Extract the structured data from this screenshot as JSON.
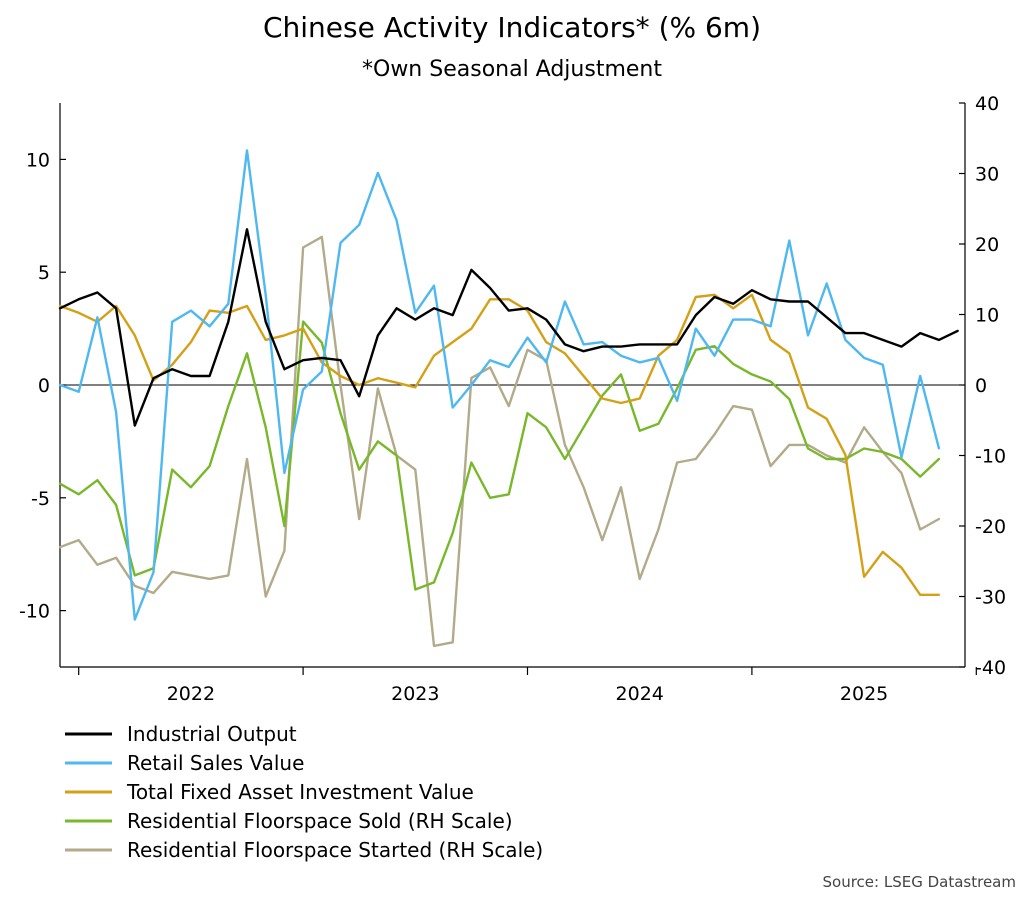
{
  "chart_data": {
    "type": "line",
    "title": "Chinese Activity Indicators* (% 6m)",
    "subtitle": "*Own Seasonal Adjustment",
    "source": "Source: LSEG Datastream",
    "x_start": "2021-12",
    "x_ticks": [
      "2022",
      "2023",
      "2024",
      "2025"
    ],
    "y_left": {
      "ticks": [
        "10",
        "5",
        "0",
        "-5",
        "-10"
      ],
      "tick_values": [
        10,
        5,
        0,
        -5,
        -10
      ],
      "ylim": [
        -12.5,
        12.5
      ]
    },
    "y_right": {
      "ticks": [
        "40",
        "30",
        "20",
        "10",
        "0",
        "-10",
        "-20",
        "-30",
        "-40"
      ],
      "tick_values": [
        40,
        30,
        20,
        10,
        0,
        -10,
        -20,
        -30,
        -40
      ],
      "ylim": [
        -40,
        40
      ]
    },
    "legend_placement": "bottom-left",
    "series": [
      {
        "name": "Industrial Output",
        "axis": "left",
        "color": "#000000",
        "values": [
          3.4,
          3.8,
          4.1,
          3.4,
          -1.8,
          0.3,
          0.7,
          0.4,
          0.4,
          2.8,
          6.9,
          2.8,
          0.7,
          1.1,
          1.2,
          1.1,
          -0.5,
          2.2,
          3.4,
          2.9,
          3.4,
          3.1,
          5.1,
          4.3,
          3.3,
          3.4,
          2.9,
          1.8,
          1.5,
          1.7,
          1.7,
          1.8,
          1.8,
          1.8,
          3.1,
          3.9,
          3.6,
          4.2,
          3.8,
          3.7,
          3.7,
          3.0,
          2.3,
          2.3,
          2.0,
          1.7,
          2.3,
          2.0,
          2.4
        ]
      },
      {
        "name": "Retail Sales Value",
        "axis": "left",
        "color": "#4FB8F0",
        "values": [
          0.0,
          -0.3,
          3.0,
          -1.2,
          -10.4,
          -8.3,
          2.8,
          3.3,
          2.6,
          3.6,
          10.4,
          4.0,
          -3.9,
          -0.2,
          0.6,
          6.3,
          7.1,
          9.4,
          7.3,
          3.2,
          4.4,
          -1.0,
          0.0,
          1.1,
          0.8,
          2.1,
          1.0,
          3.7,
          1.8,
          1.9,
          1.3,
          1.0,
          1.2,
          -0.7,
          2.5,
          1.3,
          2.9,
          2.9,
          2.6,
          6.4,
          2.2,
          4.5,
          2.0,
          1.2,
          0.9,
          -3.2,
          0.4,
          -2.8
        ]
      },
      {
        "name": "Total Fixed Asset Investment Value",
        "axis": "left",
        "color": "#D4A017",
        "values": [
          3.5,
          3.2,
          2.8,
          3.5,
          2.2,
          0.2,
          0.9,
          1.9,
          3.3,
          3.2,
          3.5,
          2.0,
          2.2,
          2.5,
          1.0,
          0.4,
          0.0,
          0.3,
          0.1,
          -0.1,
          1.3,
          1.9,
          2.5,
          3.8,
          3.8,
          3.3,
          1.9,
          1.4,
          0.4,
          -0.6,
          -0.8,
          -0.6,
          1.3,
          2.0,
          3.9,
          4.0,
          3.4,
          4.0,
          2.0,
          1.4,
          -1.0,
          -1.5,
          -3.1,
          -8.5,
          -7.4,
          -8.1,
          -9.3,
          -9.3
        ]
      },
      {
        "name": "Residential Floorspace Sold (RH Scale)",
        "axis": "right",
        "color": "#78B82A",
        "values": [
          -14,
          -15.5,
          -13.5,
          -17,
          -27,
          -26,
          -12,
          -14.5,
          -11.5,
          -3,
          4.5,
          -6,
          -20,
          9,
          6,
          -4,
          -12,
          -8,
          -10,
          -29,
          -28,
          -21,
          -11,
          -16,
          -15.5,
          -4,
          -6,
          -10.5,
          -6,
          -1.5,
          1.5,
          -6.5,
          -5.5,
          -0.5,
          5,
          5.5,
          3,
          1.5,
          0.5,
          -2,
          -9,
          -10.5,
          -10.5,
          -9,
          -9.5,
          -10.5,
          -13,
          -10.5
        ]
      },
      {
        "name": "Residential Floorspace Started (RH Scale)",
        "axis": "right",
        "color": "#B3AA8A",
        "values": [
          -23,
          -22,
          -25.5,
          -24.5,
          -28.5,
          -29.5,
          -26.5,
          -27,
          -27.5,
          -27,
          -10.5,
          -30,
          -23.5,
          19.5,
          21,
          0,
          -19,
          -0.5,
          -10,
          -12,
          -37,
          -36.5,
          1,
          2.5,
          -3,
          5,
          3.5,
          -8.5,
          -14.5,
          -22,
          -14.5,
          -27.5,
          -20.5,
          -11,
          -10.5,
          -7,
          -3,
          -3.5,
          -11.5,
          -8.5,
          -8.5,
          -10,
          -11,
          -6,
          -9.5,
          -12.5,
          -20.5,
          -19
        ]
      }
    ]
  }
}
